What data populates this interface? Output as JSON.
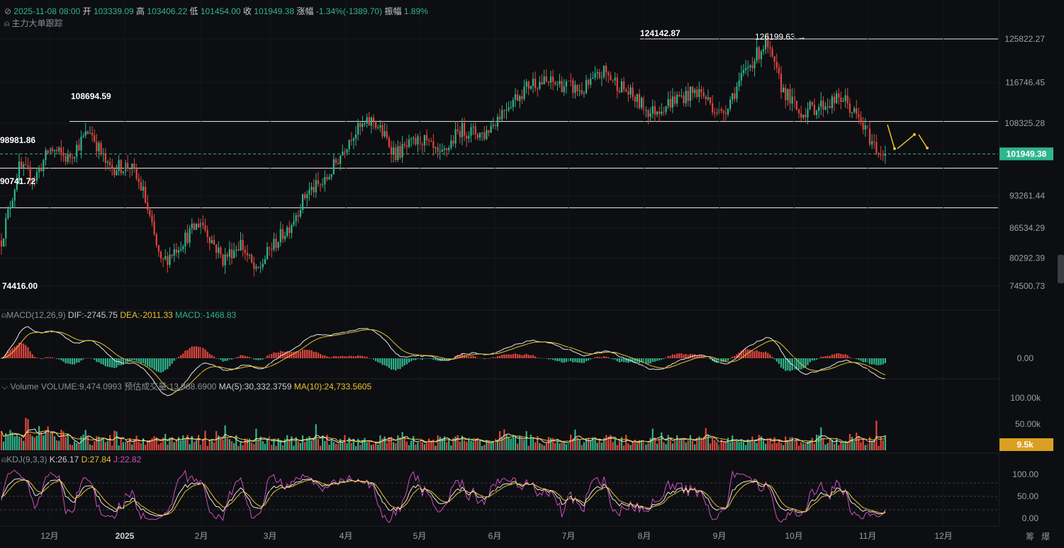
{
  "header": {
    "date": "2025-11-08 08:00",
    "open_label": "开",
    "open": "103339.09",
    "high_label": "高",
    "high": "103406.22",
    "low_label": "低",
    "low": "101454.00",
    "close_label": "收",
    "close": "101949.38",
    "change_label": "涨幅",
    "change": "-1.34%(-1389.70)",
    "amp_label": "振幅",
    "amp": "1.89%",
    "tracker": "主力大单跟踪"
  },
  "macd_header": {
    "name": "MACD(12,26,9)",
    "dif": "DIF:-2745.75",
    "dea": "DEA:-2011.33",
    "macd": "MACD:-1468.83"
  },
  "volume_header": {
    "name": "Volume",
    "vol": "VOLUME:9,474.0993",
    "est": "预估成交量:13,988.6900",
    "ma5": "MA(5):30,332.3759",
    "ma10": "MA(10):24,733.5605"
  },
  "kdj_header": {
    "name": "KDJ(9,3,3)",
    "k": "K:26.17",
    "d": "D:27.84",
    "j": "J:22.82"
  },
  "bottom_right": {
    "a": "筹",
    "b": "爆"
  },
  "colors": {
    "up": "#2fb58c",
    "down": "#e0463e",
    "ma_white": "#e8e8e8",
    "ma_yellow": "#e8c22e",
    "kdj_j": "#d04fc0",
    "price_tag": "#2fb58c",
    "vol_tag": "#d9a021"
  },
  "chart_data": {
    "type": "candlestick",
    "price_axis": {
      "ticks": [
        125822.27,
        116746.45,
        108325.28,
        93261.44,
        86534.29,
        80292.39,
        74500.73
      ],
      "current": "101949.38"
    },
    "time_axis": [
      "12月",
      "2025",
      "2月",
      "3月",
      "4月",
      "5月",
      "6月",
      "7月",
      "8月",
      "9月",
      "10月",
      "11月",
      "12月"
    ],
    "annotations": {
      "high1": "124142.87",
      "high2": "126199.63",
      "level1": "108694.59",
      "level_left1": "98981.86",
      "level_left2": "90741.72",
      "low": "74416.00"
    },
    "horizontal_levels": [
      125822.27,
      108694.59,
      98981.86,
      90741.72
    ],
    "anchors": [
      [
        0,
        84000
      ],
      [
        8,
        99000
      ],
      [
        15,
        97000
      ],
      [
        22,
        103000
      ],
      [
        30,
        101000
      ],
      [
        40,
        107000
      ],
      [
        48,
        99000
      ],
      [
        58,
        99500
      ],
      [
        64,
        94000
      ],
      [
        72,
        79000
      ],
      [
        82,
        84000
      ],
      [
        90,
        88000
      ],
      [
        100,
        80000
      ],
      [
        108,
        83500
      ],
      [
        115,
        77000
      ],
      [
        121,
        82000
      ],
      [
        130,
        87000
      ],
      [
        138,
        94000
      ],
      [
        146,
        96000
      ],
      [
        158,
        106000
      ],
      [
        168,
        109000
      ],
      [
        178,
        102000
      ],
      [
        190,
        105000
      ],
      [
        198,
        101000
      ],
      [
        207,
        107000
      ],
      [
        218,
        106000
      ],
      [
        228,
        112000
      ],
      [
        240,
        117000
      ],
      [
        252,
        116500
      ],
      [
        262,
        115000
      ],
      [
        272,
        119000
      ],
      [
        282,
        115000
      ],
      [
        293,
        110500
      ],
      [
        305,
        113500
      ],
      [
        315,
        115000
      ],
      [
        325,
        110000
      ],
      [
        337,
        120000
      ],
      [
        345,
        125000
      ],
      [
        352,
        116000
      ],
      [
        360,
        110500
      ],
      [
        370,
        112000
      ],
      [
        380,
        113500
      ],
      [
        387,
        109000
      ],
      [
        395,
        103000
      ],
      [
        398,
        101949
      ]
    ],
    "macd_axis": {
      "zero": "0.00"
    },
    "volume_axis": {
      "ticks": [
        "100.00k",
        "50.00k"
      ],
      "current": "9.5k"
    },
    "kdj_axis": {
      "ticks": [
        "100.00",
        "50.00",
        "0.00"
      ]
    }
  }
}
